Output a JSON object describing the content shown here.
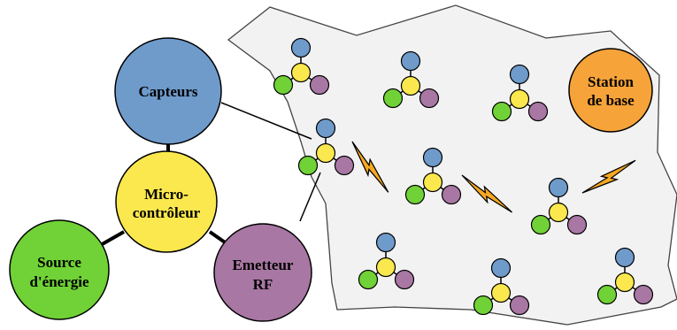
{
  "diagram": {
    "components": {
      "sensors": {
        "label": "Capteurs",
        "color": "#6f9bcb"
      },
      "microcontroller": {
        "label_line1": "Micro-",
        "label_line2": "contrôleur",
        "color": "#fbe84e"
      },
      "power_source": {
        "label_line1": "Source",
        "label_line2": "d'énergie",
        "color": "#70d236"
      },
      "rf_transmitter": {
        "label_line1": "Emetteur",
        "label_line2": "RF",
        "color": "#a877a3"
      }
    },
    "base_station": {
      "label_line1": "Station",
      "label_line2": "de base",
      "color": "#f6a33a"
    },
    "field_color": "#f2f2f2",
    "link_icon": "lightning-bolt-icon",
    "link_color": "#f7a823"
  }
}
